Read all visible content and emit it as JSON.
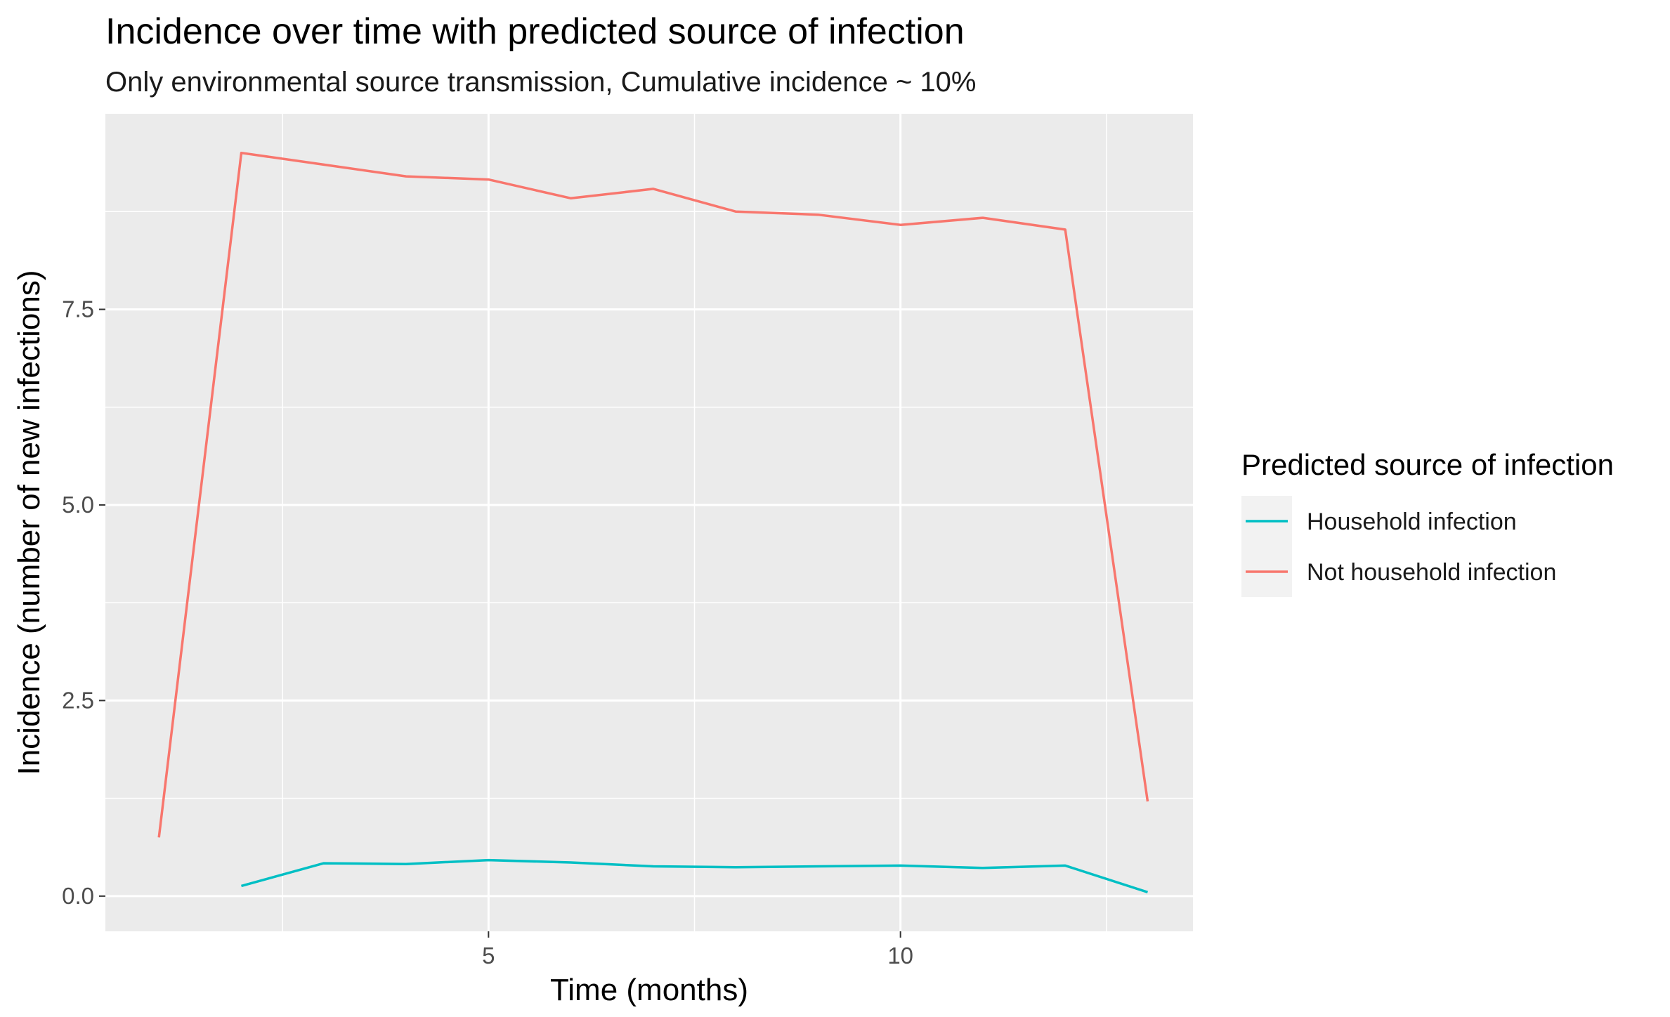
{
  "chart_data": {
    "type": "line",
    "title": "Incidence over time with predicted source of infection",
    "subtitle": "Only environmental source transmission, Cumulative incidence ~ 10%",
    "xlabel": "Time (months)",
    "ylabel": "Incidence (number of new infections)",
    "xlim": [
      0.35,
      13.55
    ],
    "ylim": [
      -0.45,
      10.0
    ],
    "x_ticks": [
      5,
      10
    ],
    "y_ticks": [
      0.0,
      2.5,
      5.0,
      7.5
    ],
    "x_tick_labels": [
      "5",
      "10"
    ],
    "y_tick_labels": [
      "0.0",
      "2.5",
      "5.0",
      "7.5"
    ],
    "x_minor_ticks": [
      2.5,
      7.5,
      12.5
    ],
    "y_minor_ticks": [
      1.25,
      3.75,
      6.25,
      8.75
    ],
    "grid": true,
    "legend_placement": "right",
    "legend_title": "Predicted source of infection",
    "series": [
      {
        "name": "Household infection",
        "color": "#00BFC4",
        "x": [
          2,
          3,
          4,
          5,
          6,
          7,
          8,
          9,
          10,
          11,
          12,
          13
        ],
        "y": [
          0.13,
          0.42,
          0.41,
          0.46,
          0.43,
          0.38,
          0.37,
          0.38,
          0.39,
          0.36,
          0.39,
          0.05
        ]
      },
      {
        "name": "Not household infection",
        "color": "#F8766D",
        "x": [
          1,
          2,
          3,
          4,
          5,
          6,
          7,
          8,
          9,
          10,
          11,
          12,
          13
        ],
        "y": [
          0.75,
          9.5,
          9.35,
          9.2,
          9.16,
          8.92,
          9.04,
          8.75,
          8.71,
          8.58,
          8.67,
          8.52,
          1.21
        ]
      }
    ]
  }
}
